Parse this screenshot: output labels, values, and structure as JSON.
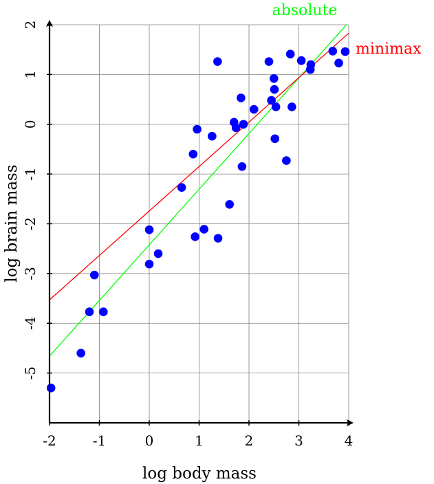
{
  "chart_data": {
    "type": "scatter",
    "xlabel": "log body mass",
    "ylabel": "log brain mass",
    "xlim": [
      -2,
      4
    ],
    "ylim": [
      -6,
      2
    ],
    "xticks": [
      -2,
      -1,
      0,
      1,
      2,
      3,
      4
    ],
    "yticks": [
      -5,
      -4,
      -3,
      -2,
      -1,
      0,
      1,
      2
    ],
    "xtick_labels": [
      "-2",
      "-1",
      "0",
      "1",
      "2",
      "3",
      "4"
    ],
    "ytick_labels": [
      "-5",
      "-4",
      "-3",
      "-2",
      "-1",
      "0",
      "1",
      "2"
    ],
    "grid": true,
    "point_color": "#0000ff",
    "points": [
      [
        -1.97,
        -5.3
      ],
      [
        -1.37,
        -4.6
      ],
      [
        -1.2,
        -3.77
      ],
      [
        -1.1,
        -3.03
      ],
      [
        -0.92,
        -3.77
      ],
      [
        0.0,
        -2.12
      ],
      [
        0.0,
        -2.81
      ],
      [
        0.18,
        -2.6
      ],
      [
        0.65,
        -1.27
      ],
      [
        0.88,
        -0.6
      ],
      [
        0.92,
        -2.26
      ],
      [
        0.96,
        -0.1
      ],
      [
        1.1,
        -2.11
      ],
      [
        1.26,
        -0.24
      ],
      [
        1.37,
        1.26
      ],
      [
        1.38,
        -2.29
      ],
      [
        1.61,
        -1.61
      ],
      [
        1.7,
        0.04
      ],
      [
        1.74,
        -0.07
      ],
      [
        1.84,
        0.53
      ],
      [
        1.86,
        -0.85
      ],
      [
        1.89,
        0.0
      ],
      [
        2.1,
        0.3
      ],
      [
        2.4,
        1.26
      ],
      [
        2.45,
        0.48
      ],
      [
        2.5,
        0.92
      ],
      [
        2.51,
        0.7
      ],
      [
        2.52,
        -0.29
      ],
      [
        2.54,
        0.35
      ],
      [
        2.75,
        -0.73
      ],
      [
        2.83,
        1.41
      ],
      [
        2.86,
        0.35
      ],
      [
        3.05,
        1.28
      ],
      [
        3.23,
        1.1
      ],
      [
        3.24,
        1.2
      ],
      [
        3.68,
        1.47
      ],
      [
        3.8,
        1.23
      ],
      [
        3.93,
        1.46
      ]
    ],
    "lines": [
      {
        "name": "absolute",
        "color": "#00ff00",
        "x": [
          -2,
          4
        ],
        "y": [
          -4.66,
          2.05
        ]
      },
      {
        "name": "minimax",
        "color": "#ff0000",
        "x": [
          -2,
          4
        ],
        "y": [
          -3.53,
          1.83
        ]
      }
    ]
  }
}
